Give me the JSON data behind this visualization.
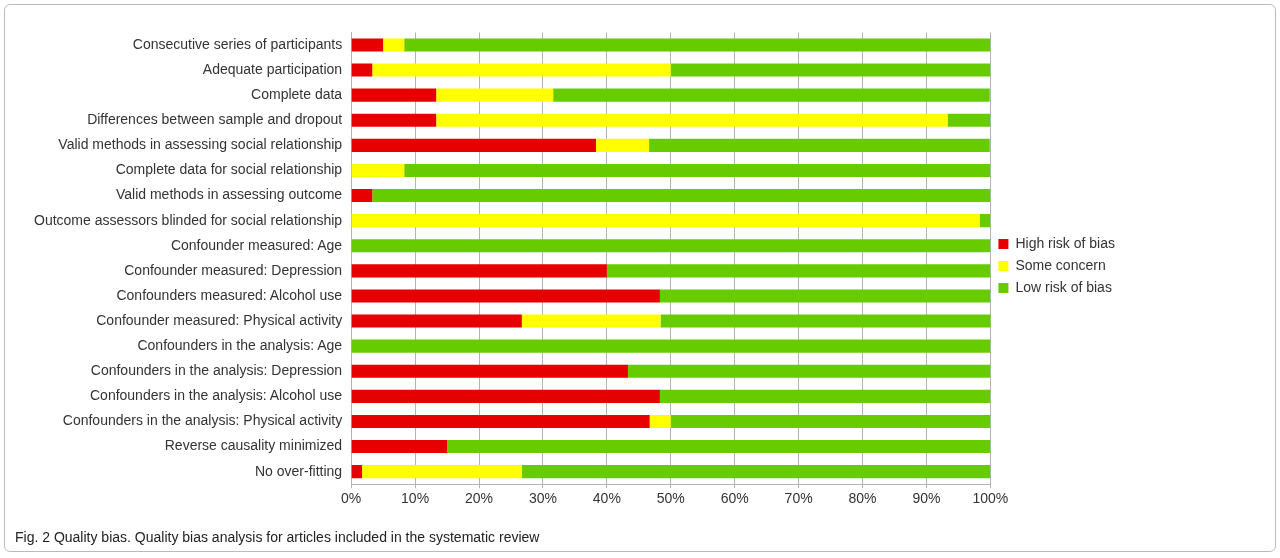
{
  "chart_data": {
    "type": "bar",
    "orientation": "horizontal",
    "stacked": true,
    "categories": [
      "Consecutive series of participants",
      "Adequate participation",
      "Complete data",
      "Differences between sample and dropout",
      "Valid methods in assessing social relationship",
      "Complete data for social relationship",
      "Valid methods in assessing outcome",
      "Outcome assessors blinded for social relationship",
      "Confounder measured: Age",
      "Confounder measured: Depression",
      "Confounders measured: Alcohol use",
      "Confounder measured: Physical activity",
      "Confounders in the analysis: Age",
      "Confounders in the analysis: Depression",
      "Confounders in the analysis: Alcohol use",
      "Confounders in the analysis: Physical activity",
      "Reverse causality minimized",
      "No over-fitting"
    ],
    "series": [
      {
        "name": "High risk of bias",
        "color": "#e60000",
        "values": [
          5,
          3.3,
          13.3,
          13.3,
          38.3,
          0,
          3.3,
          0,
          0,
          40,
          48.3,
          26.7,
          0,
          43.3,
          48.3,
          46.7,
          15,
          1.7
        ]
      },
      {
        "name": "Some concern",
        "color": "#ffff00",
        "values": [
          3.3,
          46.7,
          18.3,
          80,
          8.3,
          8.3,
          0,
          98.3,
          0,
          0,
          0,
          21.7,
          0,
          0,
          0,
          3.3,
          0,
          25
        ]
      },
      {
        "name": "Low risk of bias",
        "color": "#66cc00",
        "values": [
          91.7,
          50,
          68.3,
          6.7,
          53.3,
          91.7,
          96.7,
          1.7,
          100,
          60,
          51.7,
          51.7,
          100,
          56.7,
          51.7,
          50,
          85,
          73.3
        ]
      }
    ],
    "xlim": [
      0,
      100
    ],
    "xticks": [
      {
        "value": 0,
        "label": "0%"
      },
      {
        "value": 10,
        "label": "10%"
      },
      {
        "value": 20,
        "label": "20%"
      },
      {
        "value": 30,
        "label": "30%"
      },
      {
        "value": 40,
        "label": "40%"
      },
      {
        "value": 50,
        "label": "50%"
      },
      {
        "value": 60,
        "label": "60%"
      },
      {
        "value": 70,
        "label": "70%"
      },
      {
        "value": 80,
        "label": "80%"
      },
      {
        "value": 90,
        "label": "90%"
      },
      {
        "value": 100,
        "label": "100%"
      }
    ],
    "grid": "x",
    "legend": "right",
    "annotations": [
      "Fig. 2 Quality bias. Quality bias analysis for articles included in the systematic review"
    ]
  }
}
